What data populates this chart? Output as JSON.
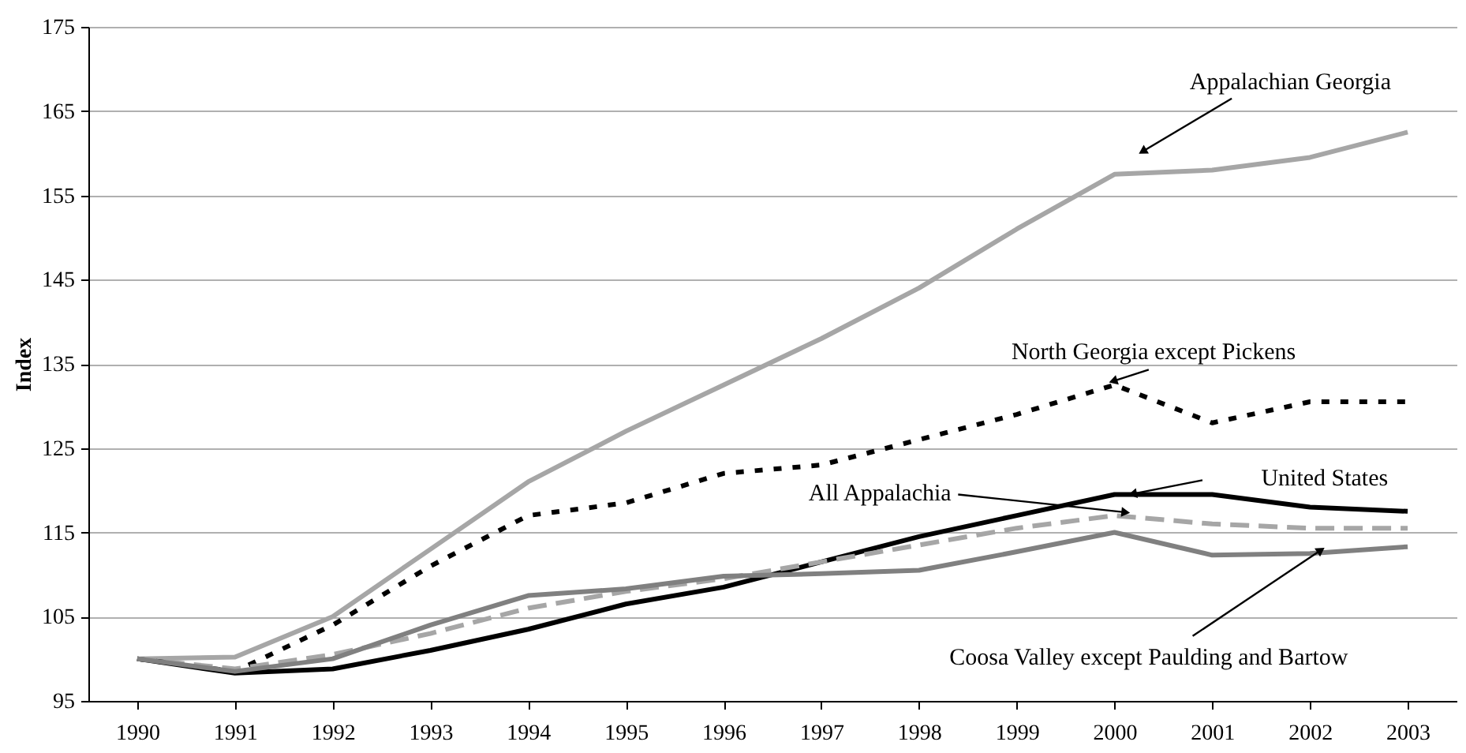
{
  "chart_data": {
    "type": "line",
    "ylabel": "Index",
    "categories": [
      "1990",
      "1991",
      "1992",
      "1993",
      "1994",
      "1995",
      "1996",
      "1997",
      "1998",
      "1999",
      "2000",
      "2001",
      "2002",
      "2003"
    ],
    "ylim": [
      95,
      175
    ],
    "yticks": [
      95,
      105,
      115,
      125,
      135,
      145,
      155,
      165,
      175
    ],
    "grid": "y",
    "series": [
      {
        "name": "Appalachian Georgia",
        "color": "#a6a6a6",
        "line_style": "solid",
        "values": [
          100,
          100.2,
          105,
          113,
          121,
          127,
          132.5,
          138,
          144,
          151,
          157.5,
          158,
          159.5,
          162.5
        ]
      },
      {
        "name": "North Georgia except Pickens",
        "color": "#000000",
        "line_style": "dotted",
        "values": [
          100,
          98.5,
          104,
          111,
          117,
          118.5,
          122,
          123,
          126,
          129,
          132.5,
          128,
          130.5,
          130.5
        ]
      },
      {
        "name": "United States",
        "color": "#000000",
        "line_style": "solid",
        "values": [
          100,
          98.3,
          98.8,
          101,
          103.5,
          106.5,
          108.5,
          111.5,
          114.5,
          117,
          119.5,
          119.5,
          118,
          117.5
        ]
      },
      {
        "name": "All Appalachia",
        "color": "#a6a6a6",
        "line_style": "dashed",
        "values": [
          100,
          98.8,
          100.5,
          103,
          106,
          108,
          109.5,
          111.5,
          113.5,
          115.5,
          117,
          116,
          115.5,
          115.5
        ]
      },
      {
        "name": "Coosa Valley except Paulding and Bartow",
        "color": "#808080",
        "line_style": "solid",
        "values": [
          100,
          98.5,
          100,
          104,
          107.5,
          108.3,
          109.8,
          110.1,
          110.5,
          112.7,
          115,
          112.3,
          112.5,
          113.3
        ]
      }
    ]
  }
}
